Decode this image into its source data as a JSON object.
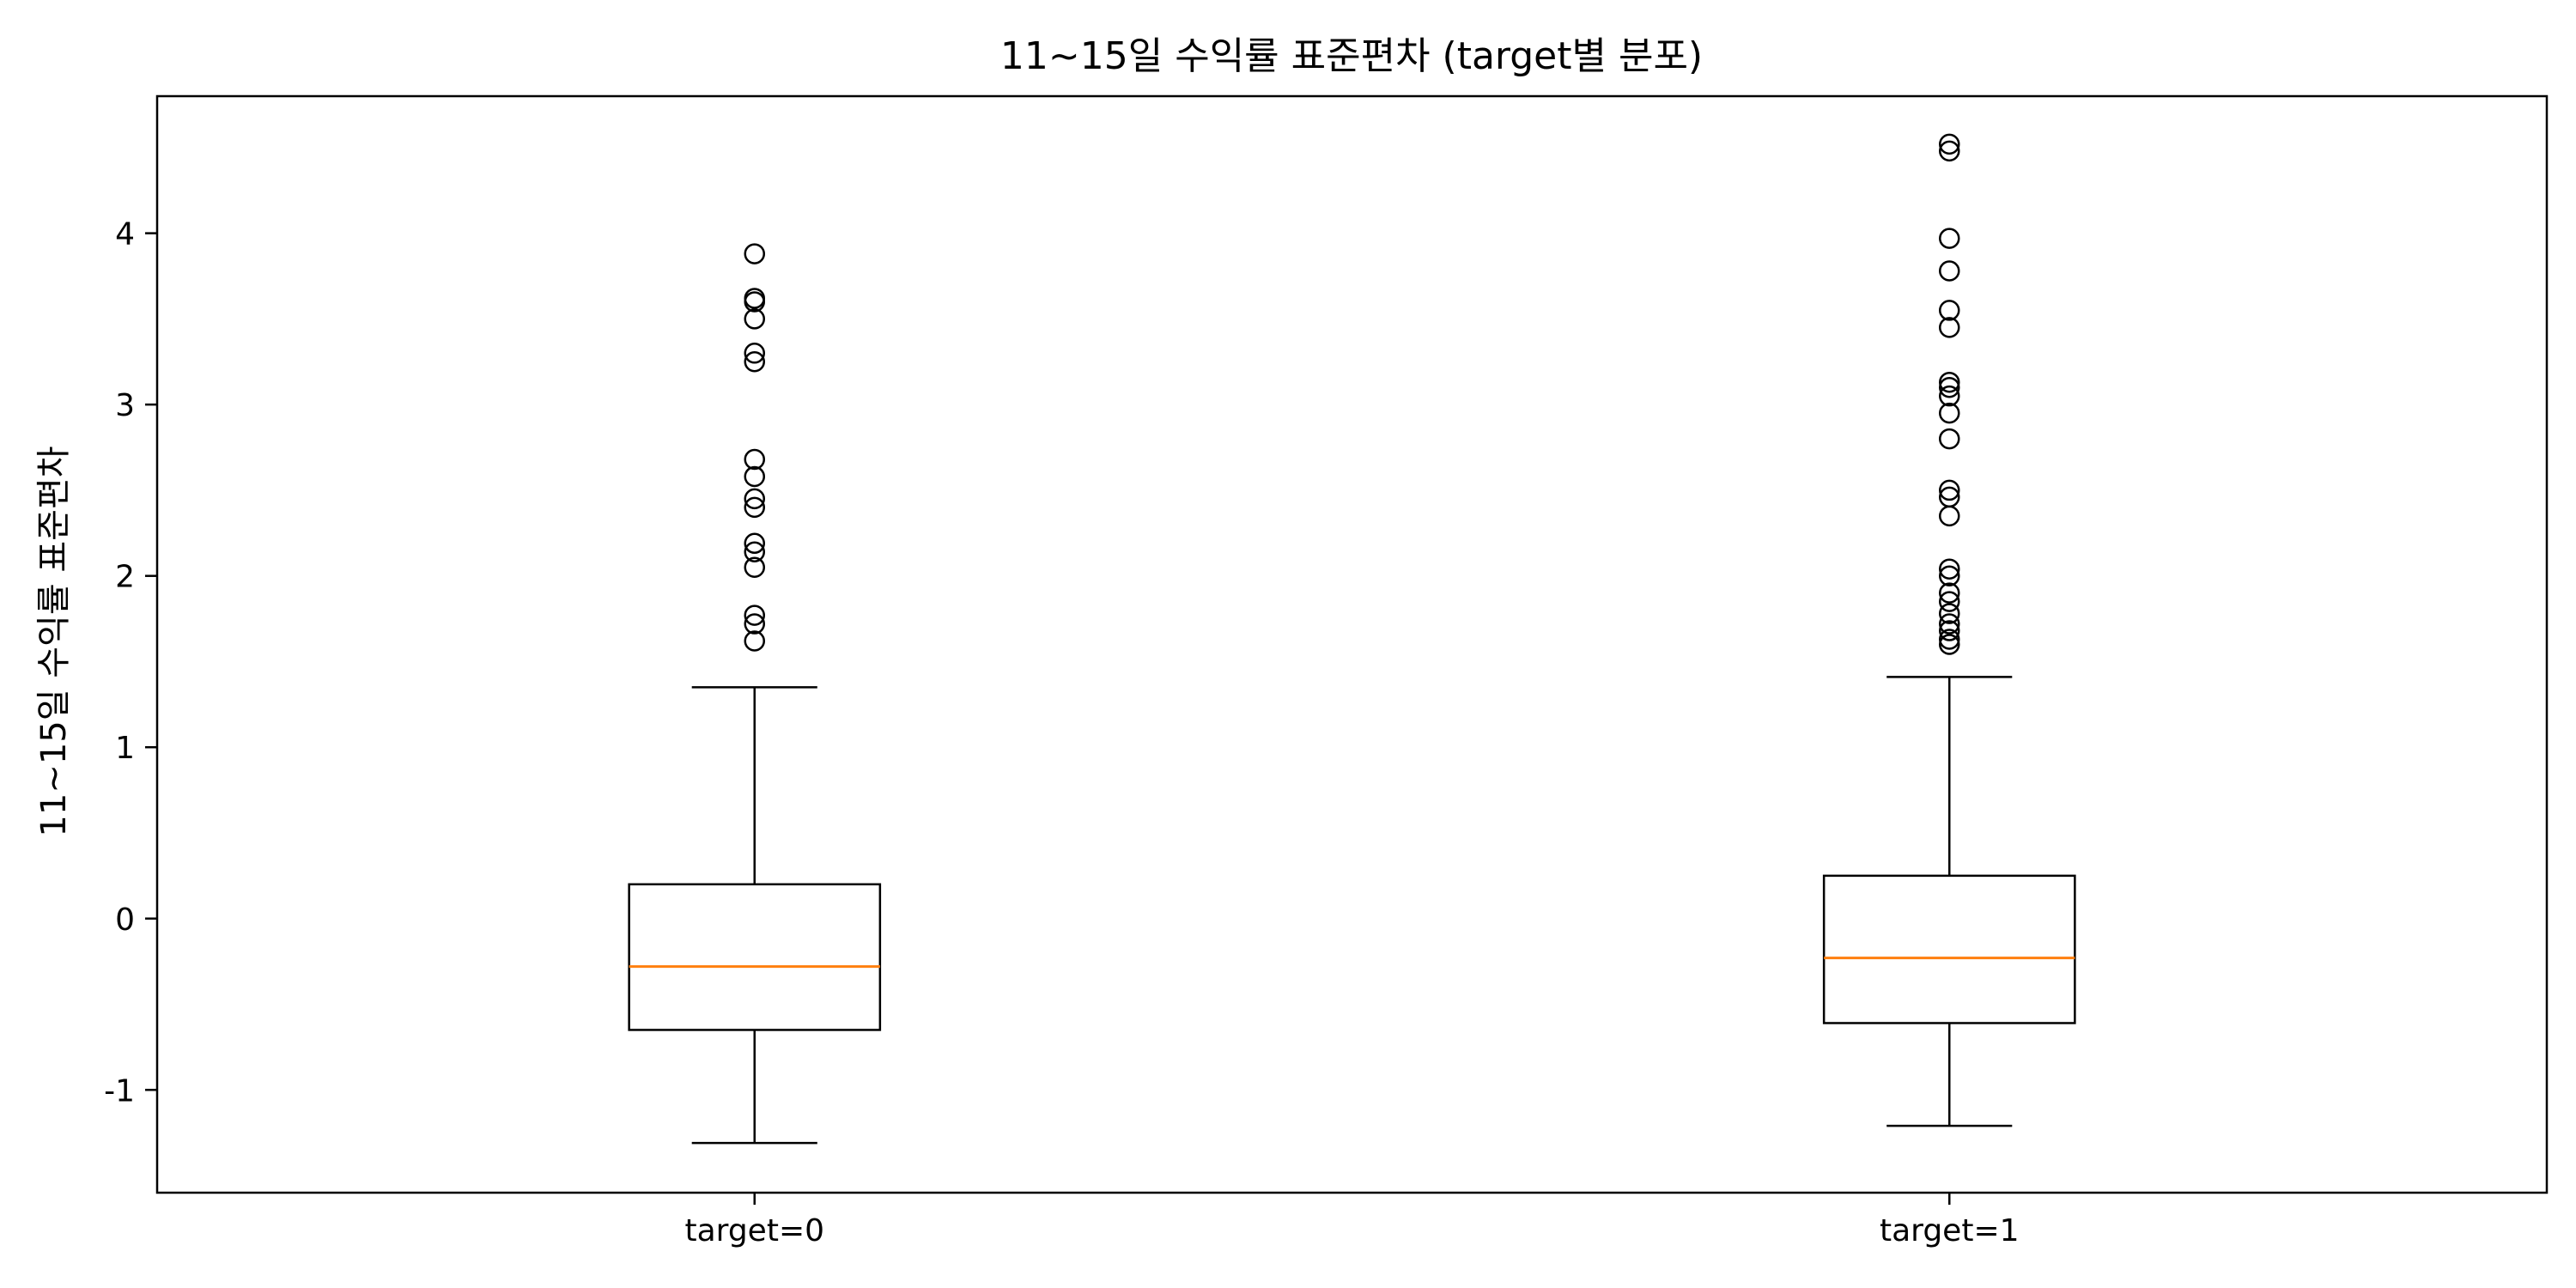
{
  "chart_data": {
    "type": "boxplot",
    "title": "11~15일 수익률 표준편차 (target별 분포)",
    "xlabel": "",
    "ylabel": "11~15일 수익률 표준편차",
    "ylim": [
      -1.6,
      4.8
    ],
    "yticks": [
      -1,
      0,
      1,
      2,
      3,
      4
    ],
    "grid": false,
    "colors": {
      "box": "#000000",
      "median": "#ff7f0e",
      "frame": "#000000"
    },
    "categories": [
      "target=0",
      "target=1"
    ],
    "boxes": [
      {
        "label": "target=0",
        "whisker_low": -1.31,
        "q1": -0.65,
        "median": -0.28,
        "q3": 0.2,
        "whisker_high": 1.35,
        "outliers": [
          3.88,
          3.62,
          3.6,
          3.5,
          3.3,
          3.25,
          2.68,
          2.58,
          2.45,
          2.4,
          2.19,
          2.14,
          2.05,
          1.77,
          1.72,
          1.62
        ]
      },
      {
        "label": "target=1",
        "whisker_low": -1.21,
        "q1": -0.61,
        "median": -0.23,
        "q3": 0.25,
        "whisker_high": 1.41,
        "outliers": [
          4.52,
          4.48,
          3.97,
          3.78,
          3.55,
          3.45,
          3.13,
          3.1,
          3.05,
          2.95,
          2.8,
          2.5,
          2.46,
          2.35,
          2.04,
          2.0,
          1.9,
          1.85,
          1.78,
          1.72,
          1.68,
          1.63,
          1.6
        ]
      }
    ]
  }
}
